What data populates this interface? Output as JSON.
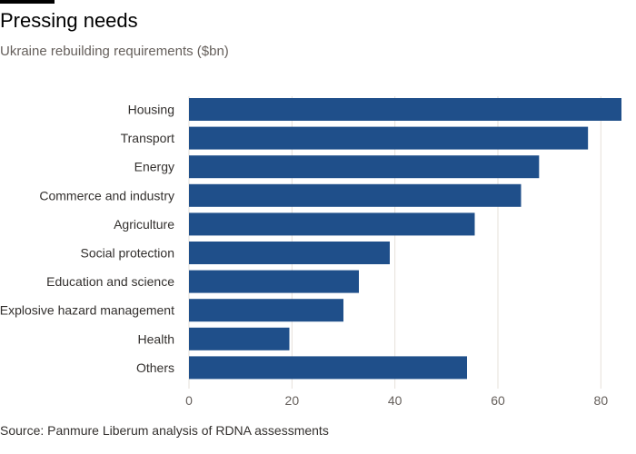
{
  "header": {
    "title": "Pressing needs",
    "subtitle": "Ukraine rebuilding requirements ($bn)"
  },
  "footer": {
    "source": "Source: Panmure Liberum analysis of RDNA assessments"
  },
  "colors": {
    "bar": "#1f4f8a",
    "accent_rule": "#000000"
  },
  "chart_data": {
    "type": "bar",
    "orientation": "horizontal",
    "title": "Pressing needs",
    "subtitle": "Ukraine rebuilding requirements ($bn)",
    "xlabel": "",
    "ylabel": "",
    "categories": [
      "Housing",
      "Transport",
      "Energy",
      "Commerce and industry",
      "Agriculture",
      "Social protection",
      "Education and science",
      "Explosive hazard management",
      "Health",
      "Others"
    ],
    "values": [
      84,
      77.5,
      68,
      64.5,
      55.5,
      39,
      33,
      30,
      19.5,
      54
    ],
    "xlim": [
      0,
      84
    ],
    "xticks": [
      0,
      20,
      40,
      60,
      80
    ],
    "grid": true
  }
}
